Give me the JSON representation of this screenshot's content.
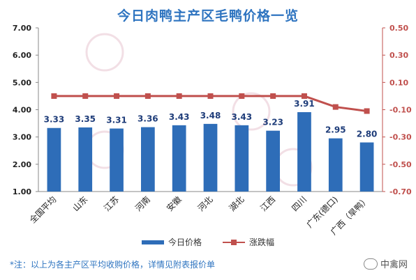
{
  "chart_data": {
    "type": "bar",
    "title": "今日肉鸭主产区毛鸭价格一览",
    "categories": [
      "全国平均",
      "山东",
      "江苏",
      "河南",
      "安徽",
      "河北",
      "湖北",
      "江西",
      "四川",
      "广东(德口)",
      "广西（旱鸭）"
    ],
    "series": [
      {
        "name": "今日价格",
        "type": "bar",
        "axis": "left",
        "color": "#2e6db8",
        "values": [
          3.33,
          3.35,
          3.31,
          3.36,
          3.43,
          3.48,
          3.43,
          3.23,
          3.91,
          2.95,
          2.8
        ]
      },
      {
        "name": "涨跌幅",
        "type": "line",
        "axis": "right",
        "color": "#c0504d",
        "values": [
          0.0,
          0.0,
          0.0,
          0.0,
          0.0,
          0.0,
          0.0,
          0.0,
          0.0,
          -0.08,
          -0.11
        ]
      }
    ],
    "y_left": {
      "min": 1.0,
      "max": 7.0,
      "ticks": [
        "1.00",
        "2.00",
        "3.00",
        "4.00",
        "5.00",
        "6.00",
        "7.00"
      ]
    },
    "y_right": {
      "min": -0.7,
      "max": 0.5,
      "ticks": [
        "-0.70",
        "-0.50",
        "-0.30",
        "-0.10",
        "0.10",
        "0.30",
        "0.50"
      ]
    },
    "data_labels": [
      "3.33",
      "3.35",
      "3.31",
      "3.36",
      "3.43",
      "3.48",
      "3.43",
      "3.23",
      "3.91",
      "2.95",
      "2.80"
    ],
    "legend_position": "bottom",
    "grid": false
  },
  "footnote": "*注：以上为各主产区平均收购价格，详情见附表报价单",
  "brand": "中禽网",
  "colors": {
    "bar": "#2e6db8",
    "line": "#c0504d",
    "left_axis": "#222222",
    "right_axis": "#c0504d",
    "title": "#2e74c0"
  }
}
